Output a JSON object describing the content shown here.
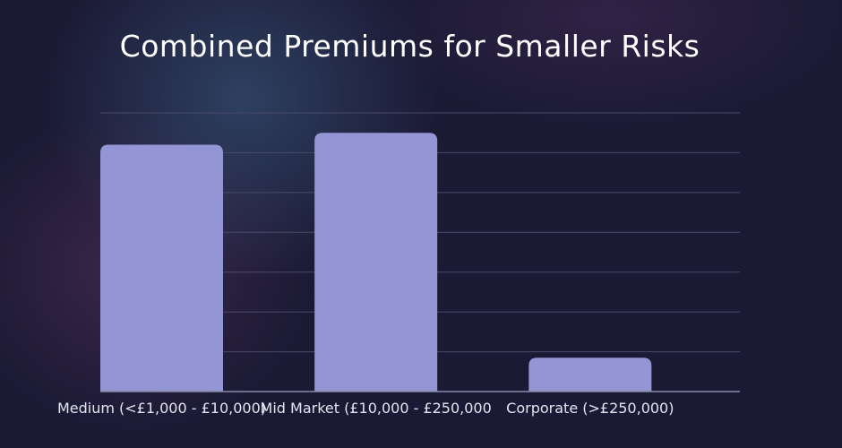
{
  "chart_data": {
    "type": "bar",
    "title": "Combined Premiums for Smaller Risks",
    "categories": [
      "Medium (<£1,000 - £10,000)",
      "Mid Market (£10,000 - £250,000",
      "Corporate (>£250,000)"
    ],
    "values": [
      62,
      65,
      8.5
    ],
    "ylim": [
      0,
      70
    ],
    "grid": true,
    "bar_color": "#9495d4",
    "grid_color": "#4a4a68",
    "axis_color": "#8a8aa6",
    "xlabel": "",
    "ylabel": ""
  }
}
